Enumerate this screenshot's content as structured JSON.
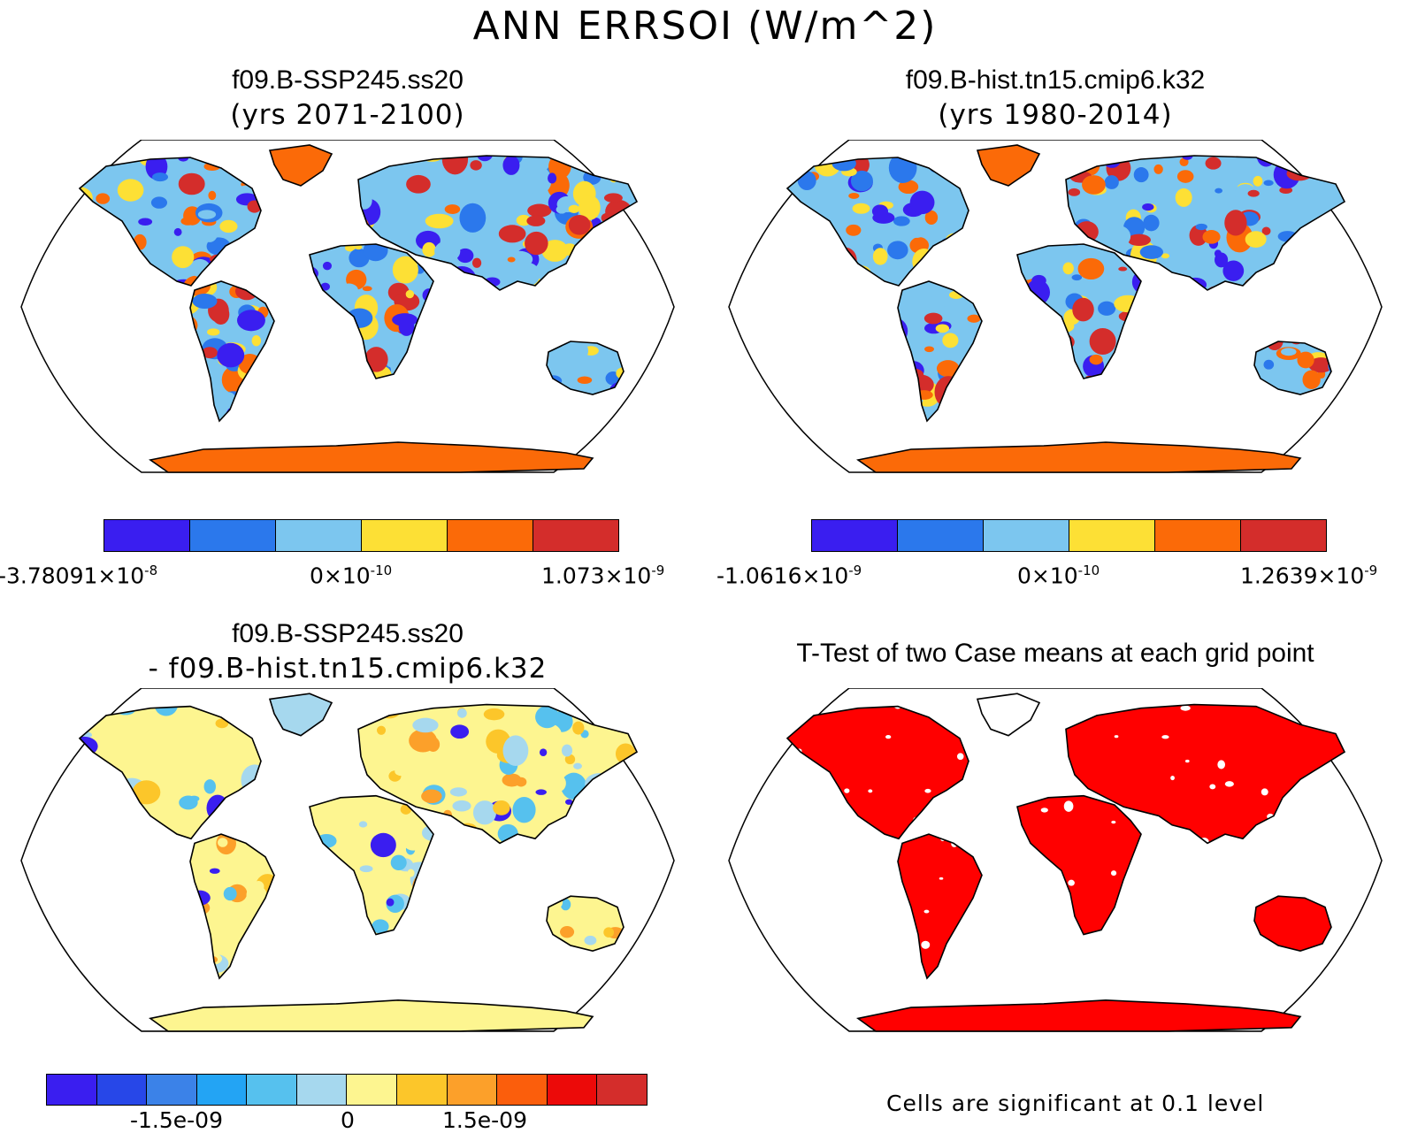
{
  "title": "ANN ERRSOI (W/m^2)",
  "panels": [
    {
      "id": "p1",
      "title": "f09.B-SSP245.ss20",
      "subtitle": "(yrs 2071-2100)",
      "colorbar": {
        "colors": [
          "#3a1ef0",
          "#2b78ec",
          "#7cc6ef",
          "#fde035",
          "#fb6a08",
          "#d42d2b"
        ],
        "ticks": [
          {
            "mant": "-3.78091×10",
            "exp": "-8"
          },
          {
            "mant": "0×10",
            "exp": "-10"
          },
          {
            "mant": "1.073×10",
            "exp": "-9"
          }
        ]
      }
    },
    {
      "id": "p2",
      "title": "f09.B-hist.tn15.cmip6.k32",
      "subtitle": "(yrs 1980-2014)",
      "colorbar": {
        "colors": [
          "#3a1ef0",
          "#2b78ec",
          "#7cc6ef",
          "#fde035",
          "#fb6a08",
          "#d42d2b"
        ],
        "ticks": [
          {
            "mant": "-1.0616×10",
            "exp": "-9"
          },
          {
            "mant": "0×10",
            "exp": "-10"
          },
          {
            "mant": "1.2639×10",
            "exp": "-9"
          }
        ]
      }
    },
    {
      "id": "p3",
      "title": "f09.B-SSP245.ss20",
      "subtitle": "- f09.B-hist.tn15.cmip6.k32",
      "colorbar": {
        "colors": [
          "#3a1ef0",
          "#2747e8",
          "#3b82e8",
          "#23a4f4",
          "#56c1ee",
          "#a6d8ee",
          "#fdf590",
          "#fcc62a",
          "#fca02a",
          "#fb5e0c",
          "#ec0a09",
          "#d42d2b"
        ],
        "ticks": [
          "-1.5e-09",
          "0",
          "1.5e-09"
        ]
      }
    },
    {
      "id": "p4",
      "title": "T-Test of two Case means at each grid point",
      "note": "Cells are significant at 0.1 level",
      "fill": "#ff0000"
    }
  ],
  "colors": {
    "ocean": "#ffffff",
    "outline": "#000000",
    "antarctica_warm": "#fb6a08",
    "antarctica_diff": "#fdf590",
    "significance": "#ff0000"
  }
}
